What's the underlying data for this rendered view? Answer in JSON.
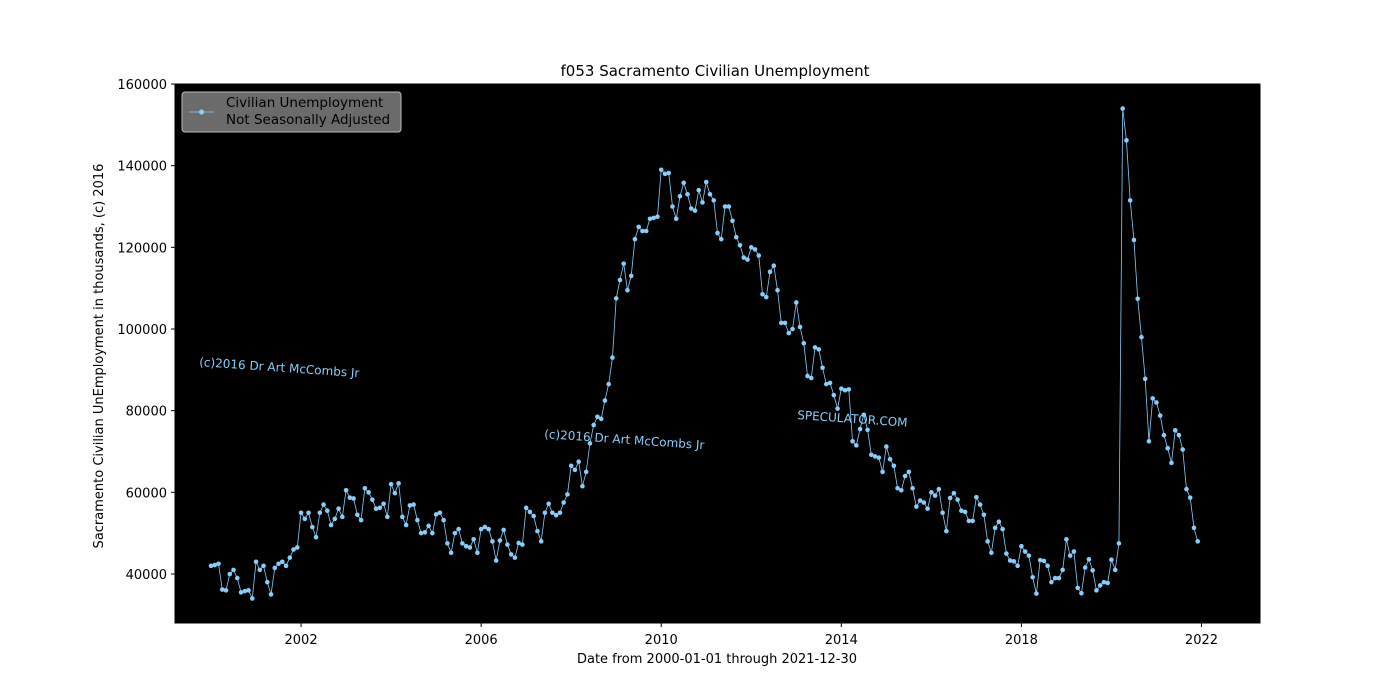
{
  "colors": {
    "plot_background": "#000000",
    "series": "#87cefa",
    "legend_background": "#6b6b6b",
    "watermark": "#87cefa"
  },
  "chart_data": {
    "type": "line",
    "title": "f053 Sacramento Civilian Unemployment",
    "xlabel": "Date from 2000-01-01 through 2021-12-30",
    "ylabel": "Sacramento Civilian UnEmployment in thousands, (c) 2016",
    "xlim": [
      1999.2,
      2023.3
    ],
    "ylim": [
      28000,
      160000
    ],
    "xticks": [
      2002,
      2006,
      2010,
      2014,
      2018,
      2022
    ],
    "yticks": [
      40000,
      60000,
      80000,
      100000,
      120000,
      140000,
      160000
    ],
    "grid": false,
    "legend": {
      "placement": "top-left",
      "lines": [
        "Civilian Unemployment",
        "Not Seasonally Adjusted"
      ]
    },
    "annotations": [
      "(c)2016 Dr Art McCombs Jr",
      "(c)2016 Dr Art McCombs Jr",
      "SPECULATOR.COM"
    ],
    "series": [
      {
        "name": "Civilian Unemployment Not Seasonally Adjusted",
        "x_start": "2000-01",
        "frequency": "monthly",
        "values": [
          42000,
          42200,
          42500,
          36200,
          36000,
          40000,
          41000,
          39000,
          35500,
          35800,
          36000,
          34000,
          43000,
          41000,
          42000,
          38000,
          35000,
          41500,
          42500,
          43000,
          42000,
          44000,
          46000,
          46500,
          55000,
          53500,
          55000,
          51500,
          49000,
          55000,
          57000,
          55500,
          52000,
          53500,
          56000,
          54000,
          60500,
          58700,
          58500,
          54500,
          53200,
          61000,
          60000,
          58200,
          56000,
          56200,
          57200,
          54000,
          62000,
          59800,
          62200,
          54000,
          52000,
          56800,
          57000,
          53200,
          50000,
          50200,
          51800,
          50000,
          54600,
          55000,
          53200,
          47500,
          45200,
          50000,
          51000,
          47500,
          46800,
          46500,
          48500,
          45200,
          51000,
          51500,
          51000,
          48000,
          43300,
          48200,
          50800,
          47200,
          44800,
          44000,
          47600,
          47200,
          56200,
          55200,
          54200,
          50500,
          48000,
          55000,
          57200,
          55000,
          54400,
          55000,
          57500,
          59500,
          66500,
          65500,
          67500,
          61500,
          65000,
          72000,
          76500,
          78500,
          78000,
          82500,
          86500,
          93000,
          107500,
          112000,
          116000,
          109500,
          113000,
          122000,
          125000,
          124000,
          124000,
          127000,
          127200,
          127500,
          139000,
          138000,
          138200,
          130000,
          127000,
          132500,
          135800,
          133000,
          129500,
          129000,
          134000,
          131000,
          136000,
          133000,
          131500,
          123500,
          122000,
          130000,
          130000,
          126500,
          122500,
          120500,
          117500,
          117000,
          120000,
          119500,
          118000,
          108500,
          107800,
          114000,
          115500,
          109500,
          101500,
          101500,
          99000,
          100000,
          106500,
          100500,
          96500,
          88500,
          88000,
          95500,
          95000,
          90500,
          86500,
          86800,
          83800,
          80500,
          85400,
          85000,
          85200,
          72500,
          71500,
          75500,
          79000,
          75300,
          69200,
          68800,
          68500,
          65000,
          71200,
          68100,
          66500,
          61000,
          60500,
          64000,
          65000,
          61000,
          56500,
          58000,
          57500,
          56000,
          60000,
          59200,
          60800,
          55000,
          50500,
          58600,
          59800,
          58200,
          55500,
          55200,
          53000,
          53000,
          58800,
          57000,
          54500,
          48000,
          45200,
          51300,
          52800,
          51000,
          45000,
          43300,
          43100,
          42000,
          46800,
          45500,
          44500,
          39200,
          35200,
          43400,
          43200,
          42000,
          38000,
          39000,
          39000,
          41000,
          48500,
          44500,
          45500,
          36600,
          35300,
          41600,
          43600,
          40900,
          36000,
          37200,
          38000,
          37800,
          43500,
          41000,
          47500,
          154000,
          146200,
          131500,
          121800,
          107400,
          98000,
          87800,
          72500,
          83000,
          82000,
          78800,
          74000,
          70800,
          67200,
          75200,
          74000,
          70500,
          60800,
          58700,
          51300,
          48000
        ]
      }
    ]
  }
}
